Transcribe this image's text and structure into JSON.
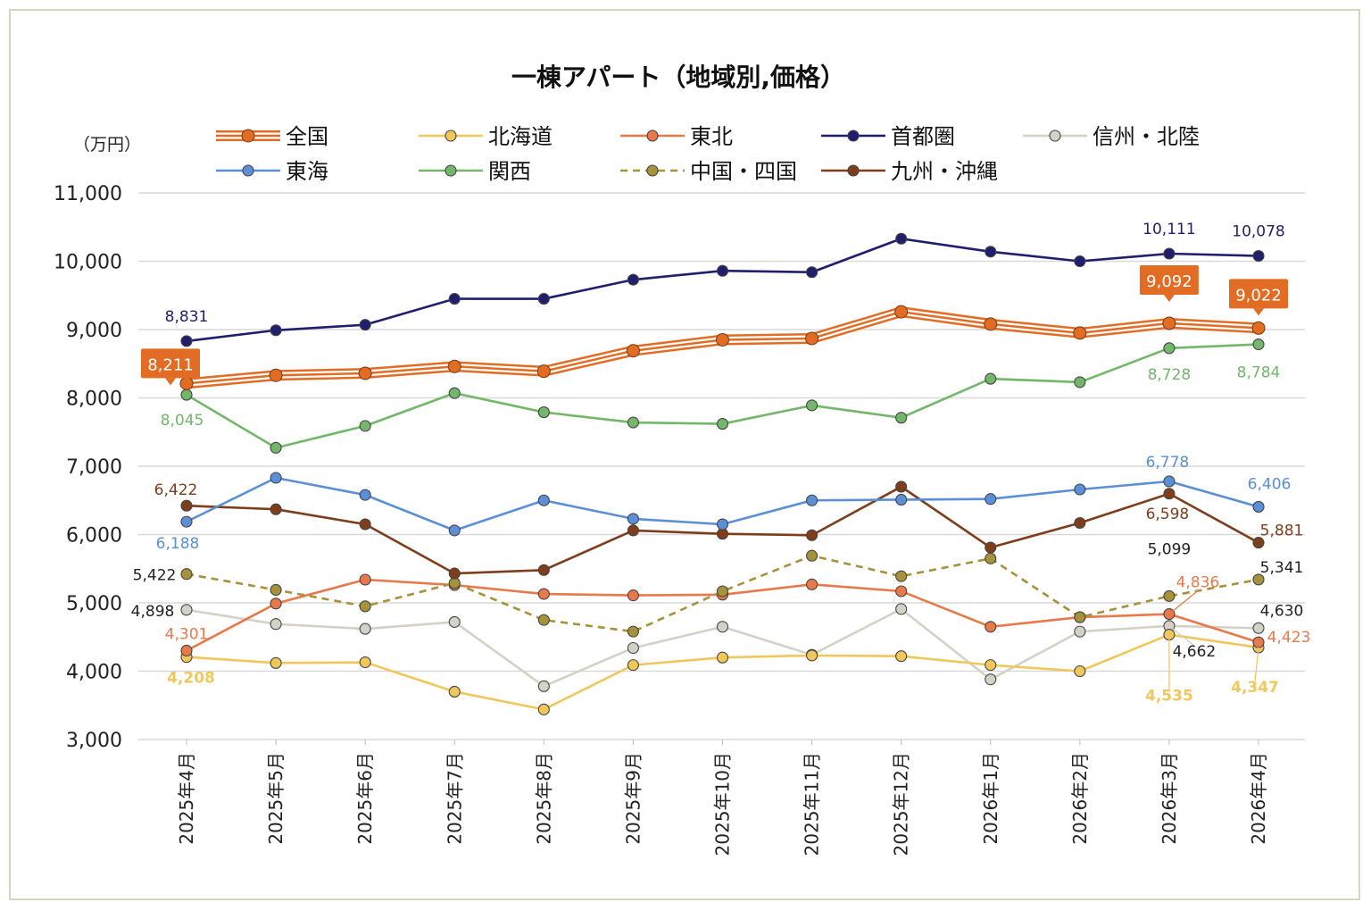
{
  "chart_data": {
    "type": "line",
    "title": "一棟アパート（地域別,価格）",
    "ylabel": "（万円）",
    "ylim": [
      3000,
      11000
    ],
    "yticks": [
      3000,
      4000,
      5000,
      6000,
      7000,
      8000,
      9000,
      10000,
      11000
    ],
    "ytick_labels": [
      "3,000",
      "4,000",
      "5,000",
      "6,000",
      "7,000",
      "8,000",
      "9,000",
      "10,000",
      "11,000"
    ],
    "grid": true,
    "legend_position": "top",
    "categories": [
      "2025年4月",
      "2025年5月",
      "2025年6月",
      "2025年7月",
      "2025年8月",
      "2025年9月",
      "2025年10月",
      "2025年11月",
      "2025年12月",
      "2026年1月",
      "2026年2月",
      "2026年3月",
      "2026年4月"
    ],
    "series": [
      {
        "name": "全国",
        "color": "#e36c25",
        "style": "triple",
        "values": [
          8211,
          8330,
          8360,
          8460,
          8390,
          8690,
          8850,
          8870,
          9260,
          9080,
          8950,
          9092,
          9022
        ]
      },
      {
        "name": "北海道",
        "color": "#f0c75b",
        "style": "solid",
        "values": [
          4208,
          4120,
          4130,
          3700,
          3440,
          4090,
          4200,
          4230,
          4220,
          4090,
          4000,
          4535,
          4347
        ]
      },
      {
        "name": "東北",
        "color": "#e8794a",
        "style": "solid",
        "values": [
          4301,
          4990,
          5340,
          5260,
          5130,
          5110,
          5120,
          5270,
          5170,
          4650,
          4790,
          4836,
          4423
        ]
      },
      {
        "name": "首都圏",
        "color": "#1f1f6e",
        "style": "solid",
        "values": [
          8831,
          8990,
          9070,
          9450,
          9450,
          9730,
          9860,
          9840,
          10330,
          10140,
          10000,
          10111,
          10078
        ]
      },
      {
        "name": "信州・北陸",
        "color": "#d4d2c6",
        "style": "solid",
        "values": [
          4898,
          4690,
          4620,
          4720,
          3780,
          4340,
          4650,
          4240,
          4910,
          3880,
          4580,
          4662,
          4630
        ]
      },
      {
        "name": "東海",
        "color": "#5b8fd6",
        "style": "solid",
        "values": [
          6188,
          6830,
          6580,
          6060,
          6500,
          6230,
          6150,
          6500,
          6510,
          6520,
          6660,
          6778,
          6406
        ]
      },
      {
        "name": "関西",
        "color": "#72b76a",
        "style": "solid",
        "values": [
          8045,
          7270,
          7590,
          8070,
          7790,
          7640,
          7620,
          7890,
          7710,
          8280,
          8230,
          8728,
          8784
        ]
      },
      {
        "name": "中国・四国",
        "color": "#a5923a",
        "style": "dashed",
        "values": [
          5422,
          5190,
          4950,
          5290,
          4750,
          4580,
          5170,
          5690,
          5390,
          5650,
          4790,
          5099,
          5341
        ]
      },
      {
        "name": "九州・沖縄",
        "color": "#7e3e1c",
        "style": "solid",
        "values": [
          6422,
          6370,
          6150,
          5430,
          5480,
          6060,
          6010,
          5990,
          6700,
          5810,
          6170,
          6598,
          5881
        ]
      }
    ],
    "data_labels": [
      {
        "series": 0,
        "index": 0,
        "text": "8,211",
        "boxed": true,
        "dx": -18,
        "dy": -22
      },
      {
        "series": 0,
        "index": 11,
        "text": "9,092",
        "boxed": true,
        "dx": 0,
        "dy": -48
      },
      {
        "series": 0,
        "index": 12,
        "text": "9,022",
        "boxed": true,
        "dx": 0,
        "dy": -38
      },
      {
        "series": 3,
        "index": 0,
        "text": "8,831",
        "dx": 0,
        "dy": -22
      },
      {
        "series": 3,
        "index": 11,
        "text": "10,111",
        "dx": 0,
        "dy": -22
      },
      {
        "series": 3,
        "index": 12,
        "text": "10,078",
        "dx": 0,
        "dy": -22
      },
      {
        "series": 6,
        "index": 0,
        "text": "8,045",
        "dx": -5,
        "dy": 34
      },
      {
        "series": 6,
        "index": 11,
        "text": "8,728",
        "dx": 0,
        "dy": 35
      },
      {
        "series": 6,
        "index": 12,
        "text": "8,784",
        "dx": 0,
        "dy": 37
      },
      {
        "series": 5,
        "index": 0,
        "text": "6,188",
        "dx": -10,
        "dy": 30
      },
      {
        "series": 5,
        "index": 11,
        "text": "6,778",
        "dx": -2,
        "dy": -16
      },
      {
        "series": 5,
        "index": 12,
        "text": "6,406",
        "dx": 12,
        "dy": -20
      },
      {
        "series": 8,
        "index": 0,
        "text": "6,422",
        "dx": -12,
        "dy": -12
      },
      {
        "series": 8,
        "index": 11,
        "text": "6,598",
        "dx": -2,
        "dy": 28
      },
      {
        "series": 8,
        "index": 12,
        "text": "5,881",
        "dx": 26,
        "dy": -8
      },
      {
        "series": 7,
        "index": 0,
        "text": "5,422",
        "dx": -36,
        "dy": 7
      },
      {
        "series": 7,
        "index": 11,
        "text": "5,099",
        "dx": 0,
        "dy": -47
      },
      {
        "series": 7,
        "index": 12,
        "text": "5,341",
        "dx": 26,
        "dy": -8
      },
      {
        "series": 4,
        "index": 0,
        "text": "4,898",
        "dx": -38,
        "dy": 7
      },
      {
        "series": 4,
        "index": 11,
        "text": "4,662",
        "dx": 28,
        "dy": 34,
        "leader": true
      },
      {
        "series": 4,
        "index": 12,
        "text": "4,630",
        "dx": 26,
        "dy": -14
      },
      {
        "series": 2,
        "index": 0,
        "text": "4,301",
        "dx": 0,
        "dy": -13
      },
      {
        "series": 2,
        "index": 11,
        "text": "4,836",
        "dx": 32,
        "dy": -30,
        "leader": true
      },
      {
        "series": 2,
        "index": 12,
        "text": "4,423",
        "dx": 34,
        "dy": 0
      },
      {
        "series": 1,
        "index": 0,
        "text": "4,208",
        "dx": 5,
        "dy": 29,
        "bold": true
      },
      {
        "series": 1,
        "index": 11,
        "text": "4,535",
        "dx": 0,
        "dy": 74,
        "bold": true,
        "leader": true
      },
      {
        "series": 1,
        "index": 12,
        "text": "4,347",
        "dx": -4,
        "dy": 50,
        "bold": true,
        "leader": true
      }
    ]
  }
}
